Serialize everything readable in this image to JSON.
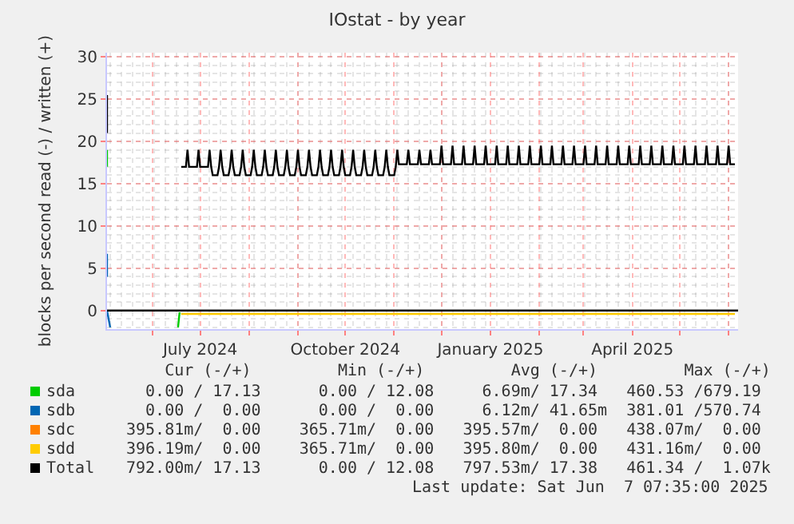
{
  "chart_data": {
    "type": "line",
    "title": "IOstat - by year",
    "ylabel": "blocks per second read (-) / written (+)",
    "xlim": [
      "2024-05-03",
      "2025-06-07"
    ],
    "xticks": [
      {
        "value": "2024-06-01",
        "label": null
      },
      {
        "value": "2024-07-01",
        "label": "July 2024"
      },
      {
        "value": "2024-08-01",
        "label": null
      },
      {
        "value": "2024-09-01",
        "label": null
      },
      {
        "value": "2024-10-01",
        "label": "October 2024"
      },
      {
        "value": "2024-11-01",
        "label": null
      },
      {
        "value": "2024-12-01",
        "label": null
      },
      {
        "value": "2025-01-01",
        "label": "January 2025"
      },
      {
        "value": "2025-02-01",
        "label": null
      },
      {
        "value": "2025-03-01",
        "label": null
      },
      {
        "value": "2025-04-01",
        "label": "April 2025"
      },
      {
        "value": "2025-05-01",
        "label": null
      },
      {
        "value": "2025-06-01",
        "label": null
      }
    ],
    "ylim": [
      -2.2,
      30.5
    ],
    "yticks": [
      0,
      5,
      10,
      15,
      20,
      25,
      30
    ],
    "grid": true,
    "legend": "bottom",
    "ref_lines": [
      {
        "axis": "y",
        "value": 0,
        "color": "#000000"
      }
    ],
    "series": [
      {
        "name": "sda",
        "color": "#00cc00",
        "x": [
          "2024-05-03",
          "2024-05-03"
        ],
        "values": [
          17,
          19
        ]
      },
      {
        "name": "sdb",
        "color": "#0066b3",
        "x": [
          "2024-05-03",
          "2024-05-03"
        ],
        "values": [
          4,
          6.7
        ]
      },
      {
        "name": "sdc",
        "color": "#ff8000"
      },
      {
        "name": "sdd",
        "color": "#ffcc00",
        "x": [
          "2024-06-19",
          "2025-06-05"
        ],
        "values": [
          -0.4,
          -0.4
        ]
      },
      {
        "name": "Total",
        "color": "#000000",
        "x": [
          "2024-05-03",
          "2024-05-03",
          "2024-05-04",
          "2024-06-19",
          "2024-06-22",
          "2024-06-23",
          "2024-06-24",
          "2024-06-29",
          "2024-06-30",
          "2024-07-01",
          "2024-07-06",
          "2024-07-07",
          "2024-07-08",
          "2024-07-09",
          "2024-07-12",
          "2024-07-13",
          "2024-07-14",
          "2024-07-15",
          "2024-07-16",
          "2024-07-19",
          "2024-07-20",
          "2024-07-21",
          "2024-07-22",
          "2024-07-23",
          "2024-07-26",
          "2024-07-27",
          "2024-07-28",
          "2024-07-29",
          "2024-07-30",
          "2024-08-02",
          "2024-08-03",
          "2024-08-04",
          "2024-08-05",
          "2024-08-06",
          "2024-08-09",
          "2024-08-10",
          "2024-08-11",
          "2024-08-12",
          "2024-08-13",
          "2024-08-16",
          "2024-08-17",
          "2024-08-18",
          "2024-08-19",
          "2024-08-20",
          "2024-08-23",
          "2024-08-24",
          "2024-08-25",
          "2024-08-26",
          "2024-08-27",
          "2024-08-30",
          "2024-08-31",
          "2024-09-01",
          "2024-09-02",
          "2024-09-03",
          "2024-09-06",
          "2024-09-07",
          "2024-09-08",
          "2024-09-09",
          "2024-09-10",
          "2024-09-13",
          "2024-09-14",
          "2024-09-15",
          "2024-09-16",
          "2024-09-17",
          "2024-09-20",
          "2024-09-21",
          "2024-09-22",
          "2024-09-23",
          "2024-09-24",
          "2024-09-27",
          "2024-09-28",
          "2024-09-29",
          "2024-09-30",
          "2024-10-01",
          "2024-10-04",
          "2024-10-05",
          "2024-10-06",
          "2024-10-07",
          "2024-10-08",
          "2024-10-11",
          "2024-10-12",
          "2024-10-13",
          "2024-10-14",
          "2024-10-15",
          "2024-10-18",
          "2024-10-19",
          "2024-10-20",
          "2024-10-21",
          "2024-10-22",
          "2024-10-25",
          "2024-10-26",
          "2024-10-27",
          "2024-10-28",
          "2024-10-29",
          "2024-11-01",
          "2024-11-02",
          "2024-11-03",
          "2024-11-04",
          "2024-11-09",
          "2024-11-10",
          "2024-11-11",
          "2024-11-16",
          "2024-11-17",
          "2024-11-18",
          "2024-11-23",
          "2024-11-24",
          "2024-11-25",
          "2024-11-30",
          "2024-12-01",
          "2024-12-02",
          "2024-12-07",
          "2024-12-08",
          "2024-12-09",
          "2024-12-14",
          "2024-12-15",
          "2024-12-16",
          "2024-12-21",
          "2024-12-22",
          "2024-12-23",
          "2024-12-28",
          "2024-12-29",
          "2024-12-30",
          "2025-01-04",
          "2025-01-05",
          "2025-01-06",
          "2025-01-11",
          "2025-01-12",
          "2025-01-13",
          "2025-01-18",
          "2025-01-19",
          "2025-01-20",
          "2025-01-25",
          "2025-01-26",
          "2025-01-27",
          "2025-02-01",
          "2025-02-02",
          "2025-02-03",
          "2025-02-08",
          "2025-02-09",
          "2025-02-10",
          "2025-02-15",
          "2025-02-16",
          "2025-02-17",
          "2025-02-22",
          "2025-02-23",
          "2025-02-24",
          "2025-03-01",
          "2025-03-02",
          "2025-03-03",
          "2025-03-08",
          "2025-03-09",
          "2025-03-10",
          "2025-03-15",
          "2025-03-16",
          "2025-03-17",
          "2025-03-22",
          "2025-03-23",
          "2025-03-24",
          "2025-03-29",
          "2025-03-30",
          "2025-03-31",
          "2025-04-05",
          "2025-04-06",
          "2025-04-07",
          "2025-04-12",
          "2025-04-13",
          "2025-04-14",
          "2025-04-19",
          "2025-04-20",
          "2025-04-21",
          "2025-04-26",
          "2025-04-27",
          "2025-04-28",
          "2025-05-03",
          "2025-05-04",
          "2025-05-05",
          "2025-05-10",
          "2025-05-11",
          "2025-05-12",
          "2025-05-17",
          "2025-05-18",
          "2025-05-19",
          "2025-05-24",
          "2025-05-25",
          "2025-05-26",
          "2025-05-31",
          "2025-06-01",
          "2025-06-02",
          "2025-06-05"
        ],
        "values": [
          21,
          25.5,
          null,
          17,
          17,
          19,
          17,
          17,
          19,
          17,
          17,
          19,
          17,
          16,
          16,
          17,
          19,
          17,
          16,
          16,
          17,
          19,
          17,
          16,
          16,
          17,
          19,
          17,
          16,
          16,
          17,
          19,
          17,
          16,
          16,
          17,
          19,
          17,
          16,
          16,
          17,
          19,
          17,
          16,
          16,
          17,
          19,
          17,
          16,
          16,
          17,
          19,
          17,
          16,
          16,
          17,
          19,
          17,
          16,
          16,
          17,
          19,
          17,
          16,
          16,
          17,
          19,
          17,
          16,
          16,
          17,
          19,
          17,
          16,
          16,
          17,
          19,
          17,
          16,
          16,
          17,
          19,
          17,
          16,
          16,
          17,
          19,
          17,
          16,
          16,
          17,
          19,
          17,
          16,
          16,
          17,
          19,
          17.3,
          17.3,
          19,
          17.3,
          17.3,
          19,
          17.3,
          17.3,
          19,
          17.3,
          17.3,
          19.5,
          17.3,
          17.3,
          19.5,
          17.3,
          17.3,
          19.5,
          17.3,
          17.3,
          19.5,
          17.3,
          17.3,
          19.5,
          17.3,
          17.3,
          19.5,
          17.3,
          17.3,
          19.5,
          17.3,
          17.3,
          19.5,
          17.3,
          17.3,
          19.5,
          17.3,
          17.3,
          19.5,
          17.3,
          17.3,
          19.5,
          17.3,
          17.3,
          19.5,
          17.3,
          17.3,
          19.5,
          17.3,
          17.3,
          19.5,
          17.3,
          17.3,
          19.5,
          17.3,
          17.3,
          19.5,
          17.3,
          17.3,
          19.5,
          17.3,
          17.3,
          19.5,
          17.3,
          17.3,
          19.5,
          17.3,
          17.3,
          19.5,
          17.3,
          17.3,
          19.5,
          17.3,
          17.3,
          19.5,
          17.3,
          17.3,
          19.5,
          17.3,
          17.3,
          19.5,
          17.3,
          17.3,
          19.5,
          17.3,
          17.3,
          19.5,
          17.3,
          17.3,
          19.5,
          17.3,
          17.3
        ]
      },
      {
        "color": "#0066b3",
        "x": [
          "2024-05-03",
          "2024-05-05"
        ],
        "values": [
          0,
          -2
        ]
      },
      {
        "color": "#00cc00",
        "x": [
          "2024-06-17",
          "2024-06-18"
        ],
        "values": [
          -2,
          -0.2
        ]
      }
    ],
    "annotations": [
      "    Cur (-/+)         Min (-/+)         Avg (-/+)         Max (-/+)",
      "  0.00 / 17.13      0.00 / 12.08     6.69m/ 17.34   460.53 /679.19",
      "  0.00 /  0.00      0.00 /  0.00     6.12m/ 41.65m  381.01 /570.74",
      "395.81m/  0.00    365.71m/  0.00   395.57m/  0.00   438.07m/  0.00",
      "396.19m/  0.00    365.71m/  0.00   395.80m/  0.00   431.16m/  0.00",
      "792.00m/ 17.13      0.00 / 12.08   797.53m/ 17.38   461.34 /  1.07k",
      "Last update: Sat Jun  7 07:35:00 2025"
    ]
  }
}
